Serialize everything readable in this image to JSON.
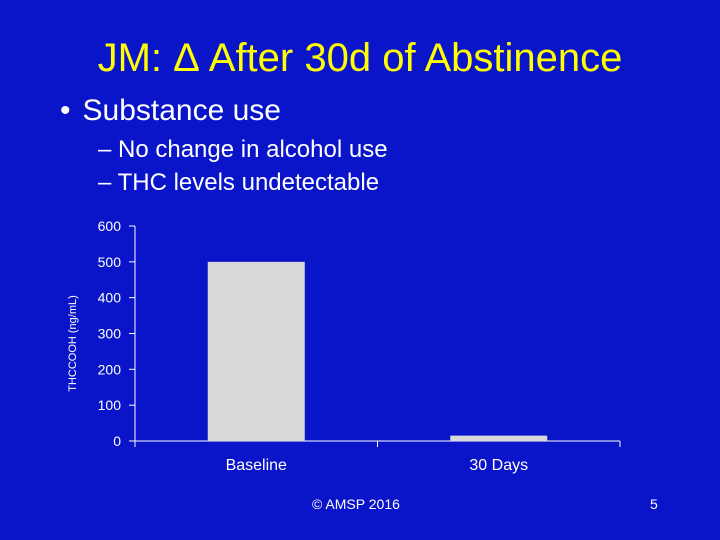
{
  "slide": {
    "title": "JM: Δ After 30d of Abstinence",
    "bullet": "Substance use",
    "bullet_marker": "•",
    "subbullets": [
      "– No change in alcohol use",
      "– THC levels undetectable"
    ],
    "footer": "© AMSP 2016",
    "page_number": "5",
    "colors": {
      "background": "#0a14c8",
      "title": "#ffff00",
      "text": "#ffffff",
      "bar": "#d9d9d9"
    }
  },
  "chart_data": {
    "type": "bar",
    "categories": [
      "Baseline",
      "30 Days"
    ],
    "values": [
      500,
      15
    ],
    "ylabel": "THCCOOH (ng/mL)",
    "ylim": [
      0,
      600
    ],
    "yticks": [
      0,
      100,
      200,
      300,
      400,
      500,
      600
    ],
    "grid": false,
    "legend": "none"
  }
}
